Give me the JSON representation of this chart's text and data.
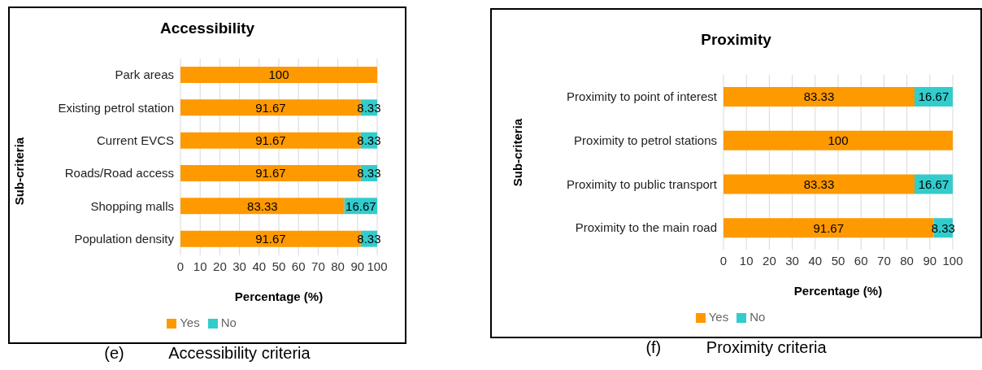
{
  "chart_data": [
    {
      "type": "bar",
      "orientation": "horizontal",
      "stacked": true,
      "title": "Accessibility",
      "xlabel": "Percentage (%)",
      "ylabel": "Sub-criteria",
      "categories": [
        "Park areas",
        "Existing petrol station",
        "Current EVCS",
        "Roads/Road access",
        "Shopping malls",
        "Population density"
      ],
      "series": [
        {
          "name": "Yes",
          "color": "#ff9900",
          "values": [
            100,
            91.67,
            91.67,
            91.67,
            83.33,
            91.67
          ]
        },
        {
          "name": "No",
          "color": "#33cccc",
          "values": [
            null,
            8.33,
            8.33,
            8.33,
            16.67,
            8.33
          ]
        }
      ],
      "xlim": [
        0,
        100
      ],
      "xticks": [
        0,
        10,
        20,
        30,
        40,
        50,
        60,
        70,
        80,
        90,
        100
      ],
      "grid": "x",
      "legend": "bottom",
      "data_labels": true,
      "annotations": [
        "(e)          Accessibility criteria"
      ]
    },
    {
      "type": "bar",
      "orientation": "horizontal",
      "stacked": true,
      "title": "Proximity",
      "xlabel": "Percentage (%)",
      "ylabel": "Sub-criteria",
      "categories": [
        "Proximity to point of interest",
        "Proximity to petrol stations",
        "Proximity to public transport",
        "Proximity to the main road"
      ],
      "series": [
        {
          "name": "Yes",
          "color": "#ff9900",
          "values": [
            83.33,
            100,
            83.33,
            91.67
          ]
        },
        {
          "name": "No",
          "color": "#33cccc",
          "values": [
            16.67,
            null,
            16.67,
            8.33
          ]
        }
      ],
      "xlim": [
        0,
        100
      ],
      "xticks": [
        0,
        10,
        20,
        30,
        40,
        50,
        60,
        70,
        80,
        90,
        100
      ],
      "grid": "x",
      "legend": "bottom",
      "data_labels": true,
      "annotations": [
        "(f)          Proximity criteria"
      ]
    }
  ]
}
